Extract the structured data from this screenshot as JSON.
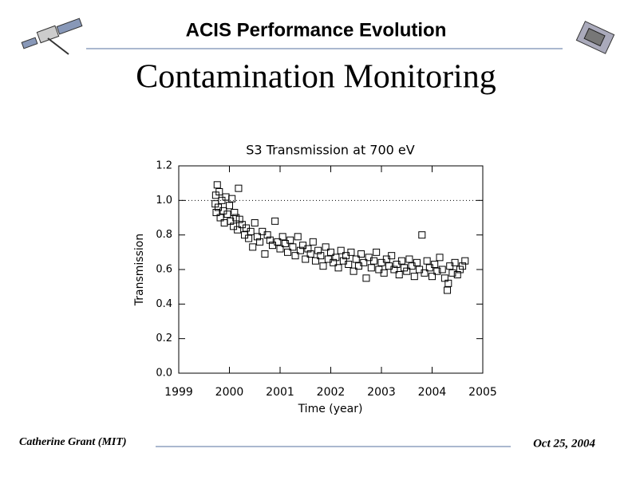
{
  "header": {
    "title": "ACIS Performance Evolution",
    "subtitle": "Contamination Monitoring"
  },
  "chart_data": {
    "type": "scatter",
    "title": "S3 Transmission at 700 eV",
    "x_label": "Time (year)",
    "y_label": "Transmission",
    "xlim": [
      1999,
      2005
    ],
    "ylim": [
      0,
      1.2
    ],
    "xticks": [
      1999,
      2000,
      2001,
      2002,
      2003,
      2004,
      2005
    ],
    "yticks": [
      {
        "value": 0,
        "label": "0.0"
      },
      0.2,
      0.4,
      0.6,
      0.8,
      {
        "value": 1,
        "label": "1.0"
      },
      1.2
    ],
    "reference_line": 1.0,
    "marker": "square",
    "color": "#000000",
    "x": [
      1999.72,
      1999.73,
      1999.74,
      1999.76,
      1999.78,
      1999.8,
      1999.82,
      1999.85,
      1999.88,
      1999.9,
      1999.93,
      1999.96,
      2000.0,
      2000.02,
      2000.05,
      2000.08,
      2000.1,
      2000.13,
      2000.16,
      2000.18,
      2000.2,
      2000.25,
      2000.3,
      2000.33,
      2000.38,
      2000.42,
      2000.46,
      2000.5,
      2000.55,
      2000.6,
      2000.65,
      2000.7,
      2000.75,
      2000.8,
      2000.85,
      2000.9,
      2000.95,
      2001.0,
      2001.05,
      2001.1,
      2001.15,
      2001.2,
      2001.25,
      2001.3,
      2001.35,
      2001.4,
      2001.45,
      2001.5,
      2001.55,
      2001.6,
      2001.65,
      2001.7,
      2001.75,
      2001.8,
      2001.85,
      2001.9,
      2001.95,
      2002.0,
      2002.05,
      2002.1,
      2002.15,
      2002.2,
      2002.25,
      2002.3,
      2002.35,
      2002.4,
      2002.45,
      2002.5,
      2002.55,
      2002.6,
      2002.65,
      2002.7,
      2002.75,
      2002.8,
      2002.85,
      2002.9,
      2002.95,
      2003.0,
      2003.05,
      2003.1,
      2003.15,
      2003.2,
      2003.25,
      2003.3,
      2003.35,
      2003.4,
      2003.45,
      2003.5,
      2003.55,
      2003.6,
      2003.65,
      2003.7,
      2003.75,
      2003.8,
      2003.85,
      2003.9,
      2003.95,
      2004.0,
      2004.05,
      2004.1,
      2004.15,
      2004.2,
      2004.25,
      2004.3,
      2004.32,
      2004.35,
      2004.4,
      2004.45,
      2004.5,
      2004.55,
      2004.6,
      2004.65
    ],
    "values": [
      0.98,
      1.03,
      0.93,
      1.09,
      0.96,
      1.05,
      0.9,
      1.0,
      0.94,
      0.87,
      1.02,
      0.92,
      0.97,
      0.88,
      1.01,
      0.85,
      0.93,
      0.9,
      0.83,
      1.07,
      0.89,
      0.86,
      0.8,
      0.84,
      0.78,
      0.82,
      0.73,
      0.87,
      0.79,
      0.76,
      0.82,
      0.69,
      0.8,
      0.77,
      0.74,
      0.88,
      0.76,
      0.72,
      0.79,
      0.75,
      0.7,
      0.77,
      0.73,
      0.68,
      0.79,
      0.71,
      0.74,
      0.66,
      0.72,
      0.69,
      0.76,
      0.65,
      0.71,
      0.68,
      0.62,
      0.73,
      0.66,
      0.7,
      0.64,
      0.67,
      0.61,
      0.71,
      0.65,
      0.68,
      0.63,
      0.7,
      0.59,
      0.66,
      0.62,
      0.69,
      0.64,
      0.55,
      0.67,
      0.61,
      0.65,
      0.7,
      0.6,
      0.64,
      0.58,
      0.66,
      0.62,
      0.68,
      0.6,
      0.63,
      0.57,
      0.65,
      0.61,
      0.59,
      0.66,
      0.62,
      0.56,
      0.64,
      0.6,
      0.8,
      0.58,
      0.65,
      0.61,
      0.56,
      0.63,
      0.59,
      0.67,
      0.6,
      0.55,
      0.48,
      0.52,
      0.62,
      0.58,
      0.64,
      0.57,
      0.6,
      0.62,
      0.65
    ]
  },
  "footer": {
    "author": "Catherine Grant (MIT)",
    "date": "Oct 25, 2004"
  }
}
